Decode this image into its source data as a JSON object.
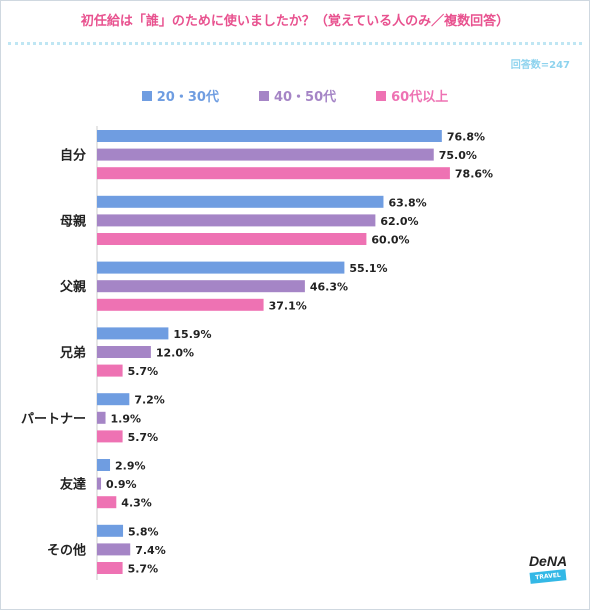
{
  "chart_data": {
    "type": "bar",
    "orientation": "horizontal",
    "title": "初任給は「誰」のために使いましたか？（覚えている人のみ／複数回答）",
    "note": "回答数=247",
    "categories": [
      "自分",
      "母親",
      "父親",
      "兄弟",
      "パートナー",
      "友達",
      "その他"
    ],
    "series": [
      {
        "name": "20・30代",
        "color": "#6f9de1",
        "values": [
          76.8,
          63.8,
          55.1,
          15.9,
          7.2,
          2.9,
          5.8
        ]
      },
      {
        "name": "40・50代",
        "color": "#a585c6",
        "values": [
          75.0,
          62.0,
          46.3,
          12.0,
          1.9,
          0.9,
          7.4
        ]
      },
      {
        "name": "60代以上",
        "color": "#ee72b3",
        "values": [
          78.6,
          60.0,
          37.1,
          5.7,
          5.7,
          4.3,
          5.7
        ]
      }
    ],
    "value_suffix": "%",
    "xlim": [
      0,
      100
    ],
    "grid": false,
    "legend_position": "top"
  },
  "logo": {
    "brand": "DeNA",
    "sub": "TRAVEL"
  }
}
